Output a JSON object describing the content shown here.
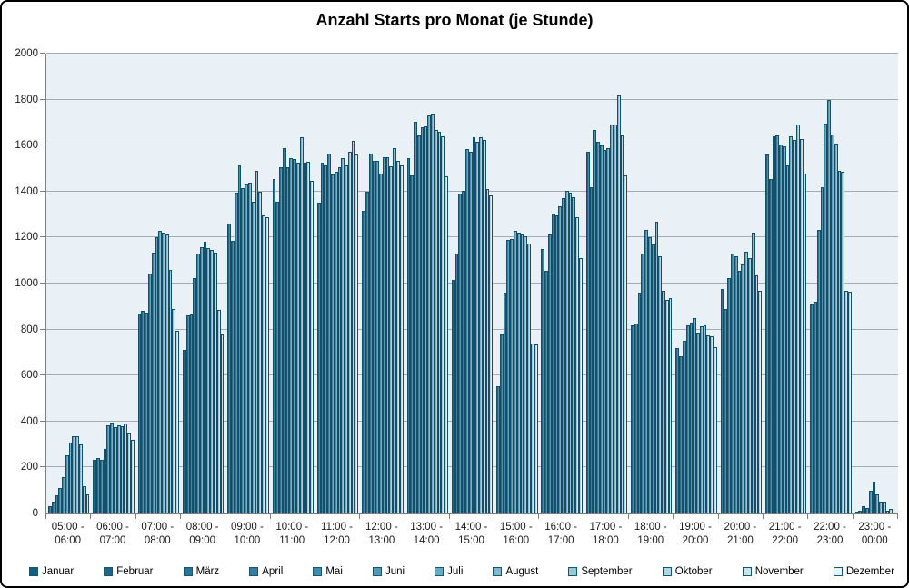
{
  "chart_data": {
    "type": "bar",
    "title": "Anzahl Starts pro Monat (je Stunde)",
    "xlabel": "",
    "ylabel": "",
    "ylim": [
      0,
      2000
    ],
    "ytick_interval": 200,
    "grid": true,
    "legend_position": "bottom",
    "plot_background": "#E9F1F6",
    "months": [
      {
        "name": "Januar",
        "color": "#165E7D"
      },
      {
        "name": "Februar",
        "color": "#1D6888"
      },
      {
        "name": "März",
        "color": "#277494"
      },
      {
        "name": "April",
        "color": "#337F9F"
      },
      {
        "name": "Mai",
        "color": "#418CAA"
      },
      {
        "name": "Juni",
        "color": "#5399B5"
      },
      {
        "name": "Juli",
        "color": "#68A8C0"
      },
      {
        "name": "August",
        "color": "#81B7CB"
      },
      {
        "name": "September",
        "color": "#9AC6D5"
      },
      {
        "name": "Oktober",
        "color": "#B4D5E1"
      },
      {
        "name": "November",
        "color": "#CEE4EC"
      },
      {
        "name": "Dezember",
        "color": "#E8F3F7"
      }
    ],
    "groups": [
      {
        "label": "05:00 - 06:00",
        "values": [
          30,
          50,
          80,
          110,
          160,
          255,
          310,
          335,
          335,
          300,
          120,
          85
        ]
      },
      {
        "label": "06:00 - 07:00",
        "values": [
          235,
          240,
          235,
          280,
          385,
          395,
          375,
          385,
          380,
          390,
          350,
          320
        ]
      },
      {
        "label": "07:00 - 08:00",
        "values": [
          870,
          880,
          875,
          1045,
          1135,
          1200,
          1230,
          1220,
          1215,
          1060,
          890,
          795
        ]
      },
      {
        "label": "08:00 - 09:00",
        "values": [
          710,
          860,
          865,
          1025,
          1130,
          1160,
          1180,
          1155,
          1145,
          1135,
          885,
          780
        ]
      },
      {
        "label": "09:00 - 10:00",
        "values": [
          1260,
          1185,
          1395,
          1515,
          1415,
          1430,
          1440,
          1355,
          1490,
          1400,
          1295,
          1290
        ]
      },
      {
        "label": "10:00 - 11:00",
        "values": [
          1455,
          1355,
          1505,
          1590,
          1505,
          1545,
          1540,
          1525,
          1635,
          1525,
          1530,
          1445
        ]
      },
      {
        "label": "11:00 - 12:00",
        "values": [
          1350,
          1525,
          1515,
          1565,
          1475,
          1485,
          1505,
          1545,
          1515,
          1575,
          1620,
          1560
        ]
      },
      {
        "label": "12:00 - 13:00",
        "values": [
          1315,
          1400,
          1565,
          1535,
          1535,
          1480,
          1550,
          1550,
          1510,
          1590,
          1535,
          1515
        ]
      },
      {
        "label": "13:00 - 14:00",
        "values": [
          1545,
          1470,
          1705,
          1645,
          1680,
          1685,
          1730,
          1740,
          1670,
          1660,
          1640,
          1465
        ]
      },
      {
        "label": "14:00 - 15:00",
        "values": [
          1015,
          1130,
          1390,
          1405,
          1585,
          1575,
          1635,
          1615,
          1635,
          1625,
          1410,
          1385
        ]
      },
      {
        "label": "15:00 - 16:00",
        "values": [
          555,
          780,
          960,
          1190,
          1195,
          1230,
          1220,
          1215,
          1205,
          1175,
          740,
          735
        ]
      },
      {
        "label": "16:00 - 17:00",
        "values": [
          1150,
          1055,
          1215,
          1305,
          1295,
          1335,
          1370,
          1405,
          1395,
          1375,
          1290,
          1110
        ]
      },
      {
        "label": "17:00 - 18:00",
        "values": [
          1575,
          1420,
          1670,
          1615,
          1600,
          1580,
          1590,
          1690,
          1690,
          1820,
          1645,
          1470
        ]
      },
      {
        "label": "18:00 - 19:00",
        "values": [
          820,
          825,
          960,
          1130,
          1235,
          1200,
          1170,
          1270,
          1120,
          970,
          930,
          935
        ]
      },
      {
        "label": "19:00 - 20:00",
        "values": [
          720,
          685,
          750,
          820,
          830,
          850,
          785,
          815,
          820,
          775,
          770,
          725
        ]
      },
      {
        "label": "20:00 - 21:00",
        "values": [
          975,
          890,
          1025,
          1130,
          1120,
          1055,
          1085,
          1140,
          1110,
          1220,
          1035,
          970
        ]
      },
      {
        "label": "21:00 - 22:00",
        "values": [
          1560,
          1455,
          1640,
          1645,
          1605,
          1595,
          1515,
          1640,
          1625,
          1690,
          1630,
          1480
        ]
      },
      {
        "label": "22:00 - 23:00",
        "values": [
          910,
          920,
          1235,
          1420,
          1695,
          1800,
          1650,
          1610,
          1490,
          1485,
          970,
          965
        ]
      },
      {
        "label": "23:00 - 00:00",
        "values": [
          8,
          12,
          30,
          22,
          100,
          140,
          85,
          52,
          50,
          12,
          18,
          5
        ]
      }
    ]
  }
}
